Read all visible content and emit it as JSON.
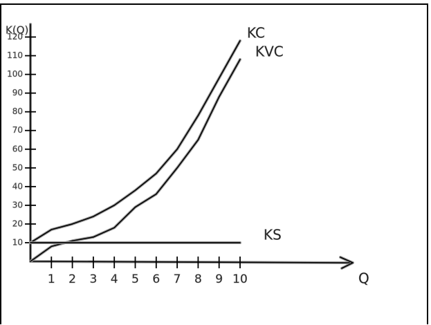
{
  "chart_data": {
    "type": "line",
    "y_label": "K(Q)",
    "x_label": "Q",
    "x": [
      0,
      1,
      2,
      3,
      4,
      5,
      6,
      7,
      8,
      9,
      10
    ],
    "series": [
      {
        "name": "KC",
        "color": "#000000",
        "values": [
          10,
          17,
          20,
          24,
          30,
          38,
          47,
          60,
          78,
          98,
          118
        ]
      },
      {
        "name": "KVC",
        "color": "#000000",
        "values": [
          0,
          8,
          11,
          13,
          18,
          29,
          36,
          50,
          65,
          88,
          108
        ]
      },
      {
        "name": "KS",
        "color": "#000000",
        "values": [
          10,
          10,
          10,
          10,
          10,
          10,
          10,
          10,
          10,
          10,
          10
        ]
      }
    ],
    "xlim": [
      0,
      15
    ],
    "ylim": [
      0,
      125
    ],
    "xticks": [
      1,
      2,
      3,
      4,
      5,
      6,
      7,
      8,
      9,
      10
    ],
    "yticks": [
      10,
      20,
      30,
      40,
      50,
      60,
      70,
      80,
      90,
      100,
      110,
      120
    ]
  }
}
